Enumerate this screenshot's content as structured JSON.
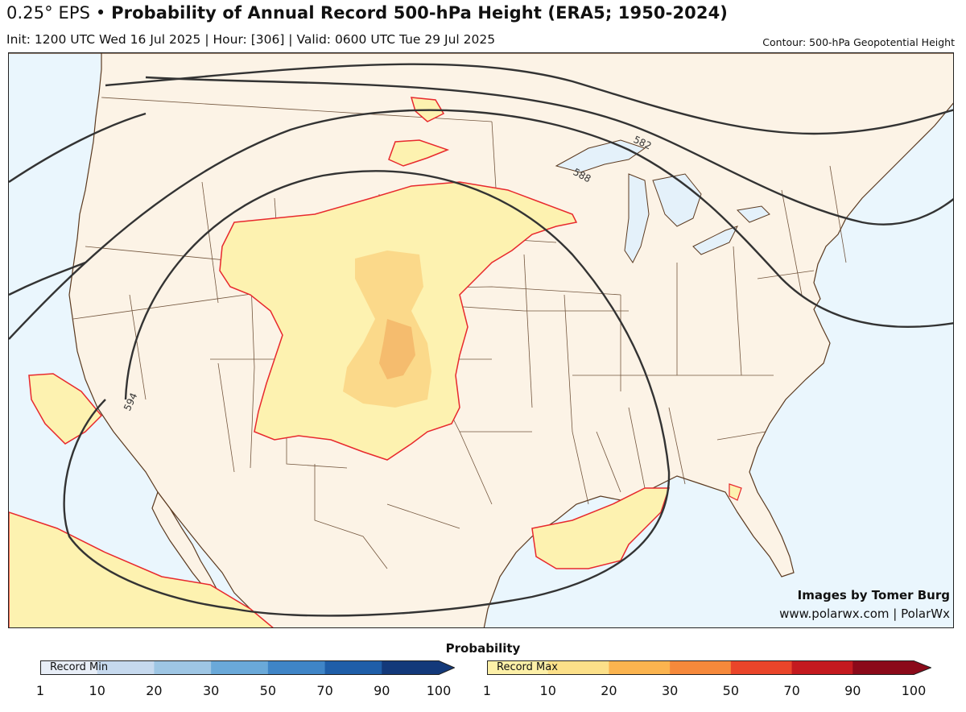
{
  "header": {
    "title_prefix": "0.25° EPS •",
    "title_main": "Probability of Annual Record 500-hPa Height (ERA5; 1950-2024)",
    "subtitle": "Init: 1200 UTC Wed 16 Jul 2025 | Hour: [306] | Valid: 0600 UTC Tue 29 Jul 2025",
    "contour_label": "Contour: 500-hPa Geopotential Height"
  },
  "map": {
    "region": "Continental United States",
    "colors": {
      "ocean": "#eaf6fd",
      "land": "#fcf3e6",
      "borders": "#5b3a20",
      "record_max_low": "#fdf2b0",
      "record_max_mid": "#fbd98a",
      "record_max_high": "#f5bc6e",
      "record_max_outline": "#e8292d",
      "contour": "#333333"
    },
    "contours": [
      {
        "label": "582"
      },
      {
        "label": "588"
      },
      {
        "label": "594"
      }
    ]
  },
  "credits": {
    "line1": "Images by Tomer Burg",
    "line2": "www.polarwx.com | PolarWx"
  },
  "colorbars": {
    "title": "Probability",
    "record_min": {
      "label": "Record Min",
      "ticks": [
        "1",
        "10",
        "20",
        "30",
        "50",
        "70",
        "90",
        "100"
      ],
      "colors": [
        "#e8eef7",
        "#c6d9ee",
        "#9ec6e4",
        "#6aa9d9",
        "#3f85c7",
        "#1f5ea8",
        "#13397a"
      ]
    },
    "record_max": {
      "label": "Record Max",
      "ticks": [
        "1",
        "10",
        "20",
        "30",
        "50",
        "70",
        "90",
        "100"
      ],
      "colors": [
        "#fdf0a8",
        "#fce089",
        "#fbb44f",
        "#f6893b",
        "#ea452a",
        "#c41a1f",
        "#8b0a1a"
      ]
    }
  }
}
